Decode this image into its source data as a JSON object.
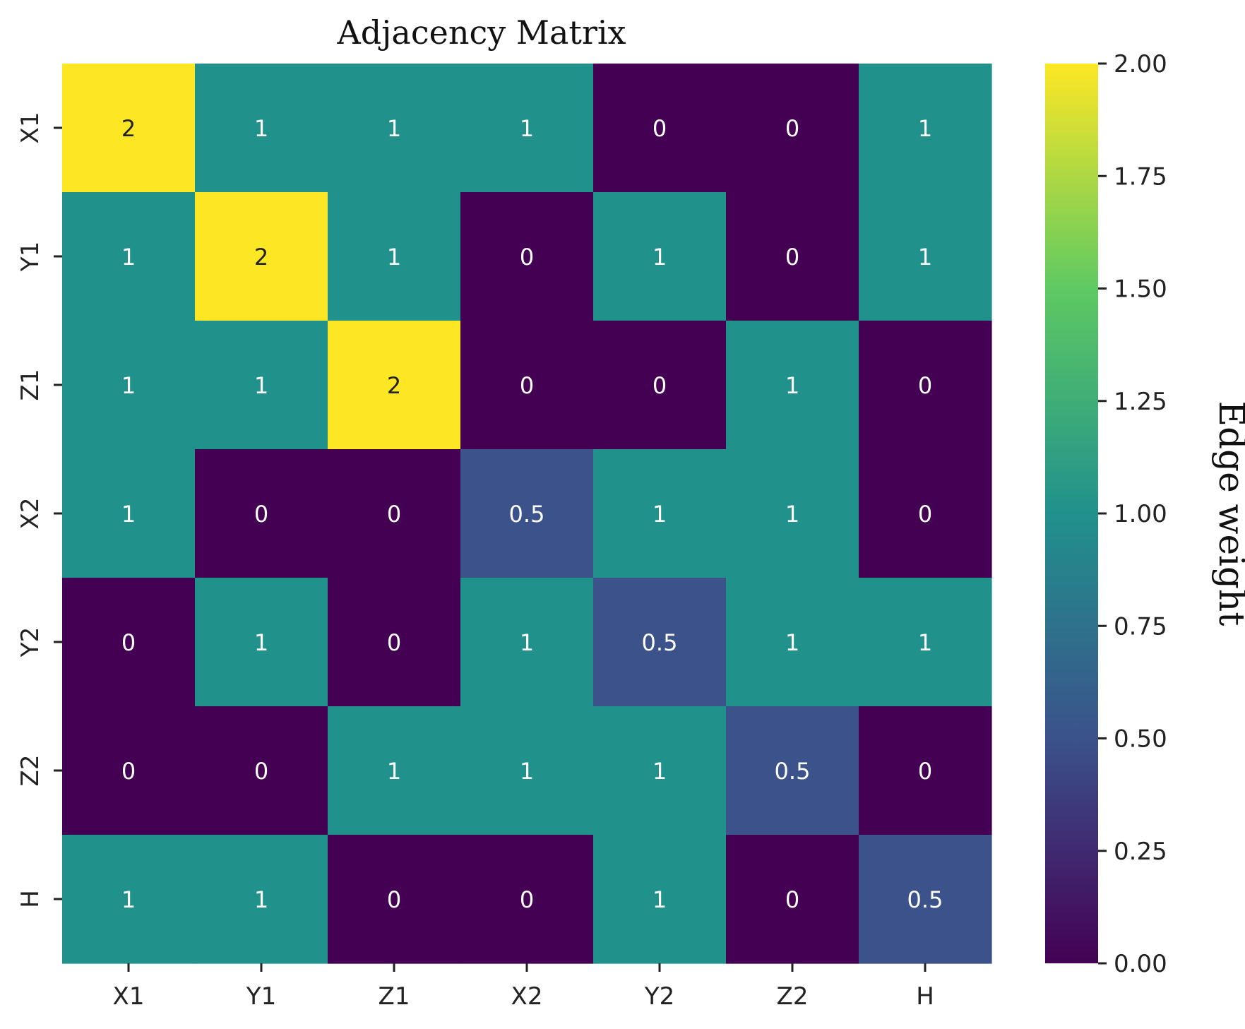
{
  "chart_data": {
    "type": "heatmap",
    "title": "Adjacency Matrix",
    "row_labels": [
      "X1",
      "Y1",
      "Z1",
      "X2",
      "Y2",
      "Z2",
      "H"
    ],
    "col_labels": [
      "X1",
      "Y1",
      "Z1",
      "X2",
      "Y2",
      "Z2",
      "H"
    ],
    "values": [
      [
        2,
        1,
        1,
        1,
        0,
        0,
        1
      ],
      [
        1,
        2,
        1,
        0,
        1,
        0,
        1
      ],
      [
        1,
        1,
        2,
        0,
        0,
        1,
        0
      ],
      [
        1,
        0,
        0,
        0.5,
        1,
        1,
        0
      ],
      [
        0,
        1,
        0,
        1,
        0.5,
        1,
        1
      ],
      [
        0,
        0,
        1,
        1,
        1,
        0.5,
        0
      ],
      [
        1,
        1,
        0,
        0,
        1,
        0,
        0.5
      ]
    ],
    "cell_labels": [
      [
        "2",
        "1",
        "1",
        "1",
        "0",
        "0",
        "1"
      ],
      [
        "1",
        "2",
        "1",
        "0",
        "1",
        "0",
        "1"
      ],
      [
        "1",
        "1",
        "2",
        "0",
        "0",
        "1",
        "0"
      ],
      [
        "1",
        "0",
        "0",
        "0.5",
        "1",
        "1",
        "0"
      ],
      [
        "0",
        "1",
        "0",
        "1",
        "0.5",
        "1",
        "1"
      ],
      [
        "0",
        "0",
        "1",
        "1",
        "1",
        "0.5",
        "0"
      ],
      [
        "1",
        "1",
        "0",
        "0",
        "1",
        "0",
        "0.5"
      ]
    ],
    "colormap": "viridis",
    "colormap_stops": [
      "#440154",
      "#3b528b",
      "#21918c",
      "#5ec962",
      "#fde725"
    ],
    "vmin": 0,
    "vmax": 2,
    "colorbar": {
      "label": "Edge weight",
      "ticks": [
        0,
        0.25,
        0.5,
        0.75,
        1.0,
        1.25,
        1.5,
        1.75,
        2.0
      ],
      "tick_labels": [
        "0.00",
        "0.25",
        "0.50",
        "0.75",
        "1.00",
        "1.25",
        "1.50",
        "1.75",
        "2.00"
      ]
    },
    "grid": false
  }
}
